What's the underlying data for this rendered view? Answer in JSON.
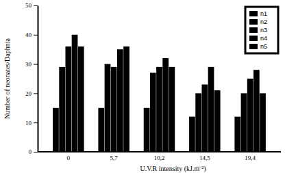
{
  "chart_data": {
    "type": "bar",
    "x_label": "U.V.R intensity (kJ.m⁻²)",
    "y_label": "Number of neonates/Daphnia",
    "categories": [
      "0",
      "5,7",
      "10,2",
      "14,5",
      "19,4"
    ],
    "series": [
      {
        "name": "n1",
        "color": "#000000",
        "values": [
          15,
          15,
          15,
          12,
          12
        ]
      },
      {
        "name": "n2",
        "color": "#000000",
        "values": [
          29,
          30,
          27,
          20,
          20
        ]
      },
      {
        "name": "n3",
        "color": "#000000",
        "values": [
          36,
          29,
          29,
          23,
          25
        ]
      },
      {
        "name": "n4",
        "color": "#000000",
        "values": [
          40,
          35,
          32,
          29,
          28
        ]
      },
      {
        "name": "n5",
        "color": "#000000",
        "values": [
          36,
          36,
          29,
          21,
          20
        ]
      }
    ],
    "ylim": [
      0,
      50
    ],
    "yticks": [
      0,
      10,
      20,
      30,
      40,
      50
    ],
    "grid": false,
    "legend": "upper right"
  }
}
